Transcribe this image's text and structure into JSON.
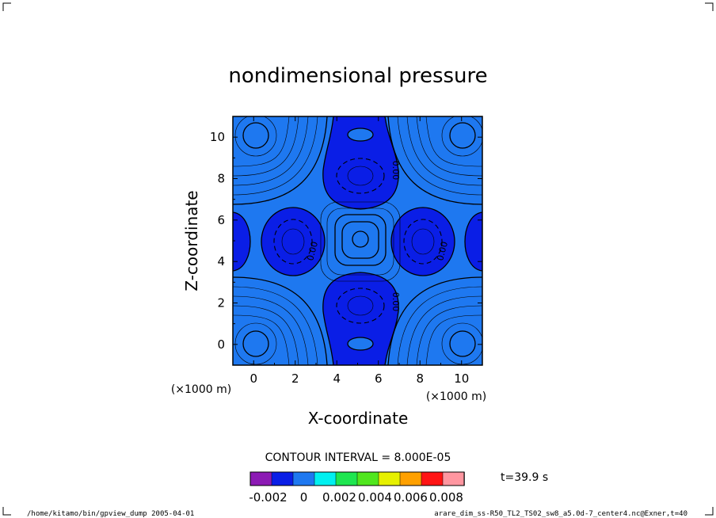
{
  "chart_data": {
    "type": "contour",
    "title": "nondimensional pressure",
    "xlabel": "X-coordinate",
    "ylabel": "Z-coordinate",
    "x_unit": "(×1000 m)",
    "y_unit": "(×1000 m)",
    "xlim": [
      -1,
      11
    ],
    "ylim": [
      -1,
      11
    ],
    "x_ticks": [
      "0",
      "2",
      "4",
      "6",
      "8",
      "10"
    ],
    "x_tick_values": [
      0,
      2,
      4,
      6,
      8,
      10
    ],
    "y_ticks": [
      "0",
      "2",
      "4",
      "6",
      "8",
      "10"
    ],
    "y_tick_values": [
      0,
      2,
      4,
      6,
      8,
      10
    ],
    "contour_interval_text": "CONTOUR INTERVAL = 8.000E-05",
    "contour_labels": [
      "0.00",
      "0.00",
      "0.00",
      "0.00"
    ],
    "time_label": "t=39.9 s",
    "colorbar": {
      "colors": [
        "#8c1ab4",
        "#0a1ee6",
        "#1e78f0",
        "#00f0f0",
        "#1ee650",
        "#50e61e",
        "#e6f000",
        "#ffa000",
        "#ff1414",
        "#ff96a0"
      ],
      "tick_labels": [
        "-0.002",
        "0",
        "0.002",
        "0.004",
        "0.006",
        "0.008"
      ],
      "tick_values": [
        -0.002,
        0,
        0.002,
        0.004,
        0.006,
        0.008
      ],
      "range": [
        -0.003,
        0.009
      ]
    },
    "field": {
      "background_color": "#1e78f0",
      "low_color": "#0a1ee6",
      "centers_low": [
        [
          2,
          5
        ],
        [
          8,
          5
        ],
        [
          5,
          8.1
        ],
        [
          5,
          2.1
        ],
        [
          -1,
          5
        ],
        [
          11,
          5
        ]
      ],
      "centers_high": [
        [
          0,
          10
        ],
        [
          10,
          10
        ],
        [
          0,
          0
        ],
        [
          10,
          0
        ],
        [
          5,
          5
        ],
        [
          5,
          10.4
        ],
        [
          5,
          -0.1
        ]
      ]
    }
  },
  "footer": {
    "left": "/home/kitamo/bin/gpview_dump  2005-04-01",
    "right": "arare_dim_ss-R50_TL2_TS02_sw8_a5.0d-7_center4.nc@Exner,t=40"
  }
}
